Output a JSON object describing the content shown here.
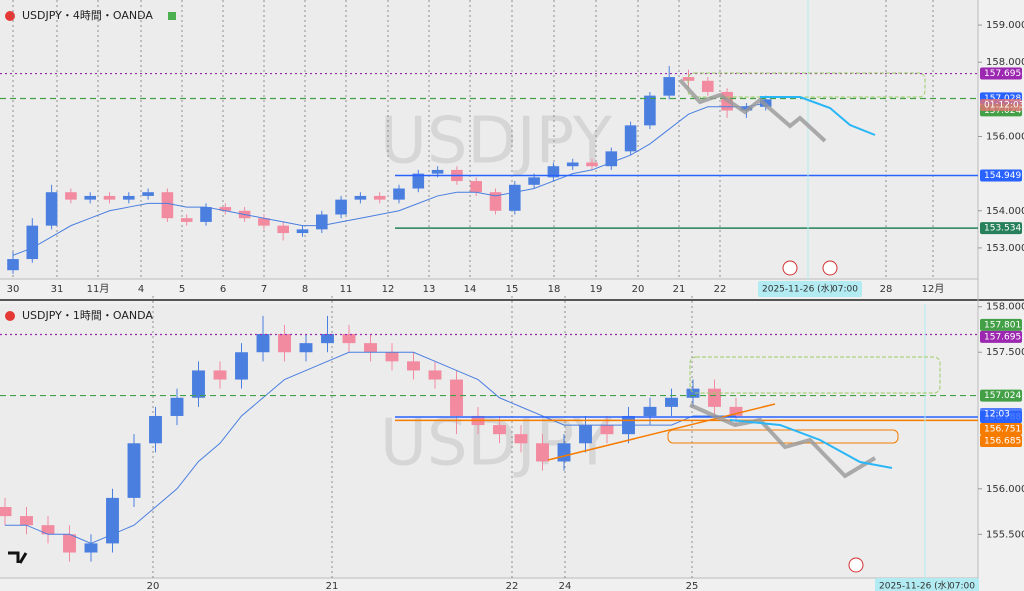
{
  "chart_data": [
    {
      "type": "candlestick",
      "title": "USDJPY・4時間・OANDA",
      "watermark": "USDJPY",
      "ylim": [
        152.19,
        159.46
      ],
      "yticks": [
        {
          "value": 159,
          "label": "159.000"
        },
        {
          "value": 158,
          "label": "158.000"
        },
        {
          "value": 156,
          "label": "156.000"
        },
        {
          "value": 154,
          "label": "154.000"
        },
        {
          "value": 153,
          "label": "153.000"
        }
      ],
      "xticks": [
        "30",
        "31",
        "11月",
        "4",
        "5",
        "6",
        "7",
        "8",
        "11",
        "12",
        "13",
        "14",
        "15",
        "18",
        "19",
        "20",
        "21",
        "22",
        "28",
        "12月"
      ],
      "up_color": "#4a7fe0",
      "down_color": "#f28aa0",
      "candles": [
        [
          152.4,
          152.9,
          152.3,
          152.7
        ],
        [
          152.7,
          153.8,
          152.6,
          153.6
        ],
        [
          153.6,
          154.7,
          153.5,
          154.5
        ],
        [
          154.5,
          154.6,
          154.2,
          154.3
        ],
        [
          154.3,
          154.5,
          154.2,
          154.4
        ],
        [
          154.4,
          154.5,
          154.2,
          154.3
        ],
        [
          154.3,
          154.5,
          154.2,
          154.4
        ],
        [
          154.4,
          154.6,
          154.3,
          154.5
        ],
        [
          154.5,
          154.6,
          153.7,
          153.8
        ],
        [
          153.8,
          153.9,
          153.6,
          153.7
        ],
        [
          153.7,
          154.2,
          153.6,
          154.1
        ],
        [
          154.1,
          154.2,
          153.9,
          154.0
        ],
        [
          154.0,
          154.1,
          153.7,
          153.8
        ],
        [
          153.8,
          153.9,
          153.5,
          153.6
        ],
        [
          153.6,
          153.7,
          153.2,
          153.4
        ],
        [
          153.4,
          153.6,
          153.3,
          153.5
        ],
        [
          153.5,
          154.0,
          153.4,
          153.9
        ],
        [
          153.9,
          154.4,
          153.8,
          154.3
        ],
        [
          154.3,
          154.5,
          154.2,
          154.4
        ],
        [
          154.4,
          154.5,
          154.2,
          154.3
        ],
        [
          154.3,
          154.7,
          154.2,
          154.6
        ],
        [
          154.6,
          155.1,
          154.5,
          155.0
        ],
        [
          155.0,
          155.2,
          154.9,
          155.1
        ],
        [
          155.1,
          155.2,
          154.7,
          154.8
        ],
        [
          154.8,
          154.9,
          154.4,
          154.5
        ],
        [
          154.5,
          154.6,
          153.9,
          154.0
        ],
        [
          154.0,
          154.8,
          153.9,
          154.7
        ],
        [
          154.7,
          155.0,
          154.6,
          154.9
        ],
        [
          154.9,
          155.3,
          154.8,
          155.2
        ],
        [
          155.2,
          155.4,
          155.1,
          155.3
        ],
        [
          155.3,
          155.4,
          155.1,
          155.2
        ],
        [
          155.2,
          155.7,
          155.1,
          155.6
        ],
        [
          155.6,
          156.4,
          155.5,
          156.3
        ],
        [
          156.3,
          157.2,
          156.2,
          157.1
        ],
        [
          157.1,
          157.9,
          157.0,
          157.6
        ],
        [
          157.6,
          157.8,
          157.3,
          157.5
        ],
        [
          157.5,
          157.6,
          157.1,
          157.2
        ],
        [
          157.2,
          157.3,
          156.5,
          156.7
        ],
        [
          156.7,
          156.9,
          156.5,
          156.8
        ],
        [
          156.8,
          157.1,
          156.7,
          157.0
        ]
      ],
      "ma": {
        "color": "#4a7fe0",
        "values": [
          152.8,
          153.0,
          153.3,
          153.6,
          153.8,
          154.0,
          154.1,
          154.2,
          154.2,
          154.1,
          154.1,
          154.0,
          153.9,
          153.8,
          153.7,
          153.6,
          153.6,
          153.7,
          153.8,
          153.9,
          154.0,
          154.2,
          154.4,
          154.5,
          154.5,
          154.4,
          154.5,
          154.6,
          154.8,
          155.0,
          155.1,
          155.3,
          155.5,
          155.8,
          156.2,
          156.6,
          156.8,
          156.8,
          156.8,
          156.9
        ]
      },
      "levels": [
        {
          "value": 157.695,
          "color": "#9c27b0",
          "style": "dotted"
        },
        {
          "value": 157.028,
          "color": "#2962ff",
          "style": "none"
        },
        {
          "value": 157.024,
          "color": "#43a047",
          "style": "dashed"
        },
        {
          "value": 154.949,
          "color": "#2962ff",
          "style": "solid"
        },
        {
          "value": 153.534,
          "color": "#26805a",
          "style": "solid"
        }
      ],
      "countdown": "01:12:03",
      "cursor_date": "2025-11-26 (水)",
      "cursor_time": "07:00"
    },
    {
      "type": "candlestick",
      "title": "USDJPY・1時間・OANDA",
      "watermark": "USDJPY",
      "ylim": [
        155.02,
        158.03
      ],
      "yticks": [
        {
          "value": 158,
          "label": "158.000"
        },
        {
          "value": 157.5,
          "label": "157.500"
        },
        {
          "value": 156,
          "label": "156.000"
        },
        {
          "value": 155.5,
          "label": "155.500"
        }
      ],
      "xticks": [
        "20",
        "21",
        "22",
        "24",
        "25"
      ],
      "up_color": "#4a7fe0",
      "down_color": "#f28aa0",
      "candles": [
        [
          155.8,
          155.9,
          155.6,
          155.7
        ],
        [
          155.7,
          155.8,
          155.5,
          155.6
        ],
        [
          155.6,
          155.7,
          155.4,
          155.5
        ],
        [
          155.5,
          155.6,
          155.2,
          155.3
        ],
        [
          155.3,
          155.5,
          155.2,
          155.4
        ],
        [
          155.4,
          156.0,
          155.3,
          155.9
        ],
        [
          155.9,
          156.6,
          155.8,
          156.5
        ],
        [
          156.5,
          156.9,
          156.4,
          156.8
        ],
        [
          156.8,
          157.1,
          156.7,
          157.0
        ],
        [
          157.0,
          157.4,
          156.9,
          157.3
        ],
        [
          157.3,
          157.4,
          157.1,
          157.2
        ],
        [
          157.2,
          157.6,
          157.1,
          157.5
        ],
        [
          157.5,
          157.9,
          157.4,
          157.7
        ],
        [
          157.7,
          157.8,
          157.4,
          157.5
        ],
        [
          157.5,
          157.7,
          157.4,
          157.6
        ],
        [
          157.6,
          157.9,
          157.5,
          157.7
        ],
        [
          157.7,
          157.8,
          157.5,
          157.6
        ],
        [
          157.6,
          157.7,
          157.4,
          157.5
        ],
        [
          157.5,
          157.6,
          157.3,
          157.4
        ],
        [
          157.4,
          157.5,
          157.2,
          157.3
        ],
        [
          157.3,
          157.4,
          157.1,
          157.2
        ],
        [
          157.2,
          157.3,
          156.6,
          156.8
        ],
        [
          156.8,
          156.9,
          156.6,
          156.7
        ],
        [
          156.7,
          156.8,
          156.5,
          156.6
        ],
        [
          156.6,
          156.7,
          156.4,
          156.5
        ],
        [
          156.5,
          156.6,
          156.2,
          156.3
        ],
        [
          156.3,
          156.6,
          156.2,
          156.5
        ],
        [
          156.5,
          156.8,
          156.4,
          156.7
        ],
        [
          156.7,
          156.8,
          156.5,
          156.6
        ],
        [
          156.6,
          156.9,
          156.5,
          156.8
        ],
        [
          156.8,
          157.0,
          156.7,
          156.9
        ],
        [
          156.9,
          157.1,
          156.8,
          157.0
        ],
        [
          157.0,
          157.2,
          156.9,
          157.1
        ],
        [
          157.1,
          157.2,
          156.8,
          156.9
        ],
        [
          156.9,
          157.0,
          156.7,
          156.8
        ]
      ],
      "ma": {
        "color": "#4a7fe0",
        "values": [
          155.6,
          155.6,
          155.5,
          155.5,
          155.4,
          155.5,
          155.6,
          155.8,
          156.0,
          156.3,
          156.5,
          156.8,
          157.0,
          157.2,
          157.3,
          157.4,
          157.5,
          157.5,
          157.5,
          157.5,
          157.4,
          157.3,
          157.2,
          157.0,
          156.9,
          156.8,
          156.7,
          156.7,
          156.7,
          156.7,
          156.7,
          156.7,
          156.8,
          156.8,
          156.8
        ]
      },
      "levels": [
        {
          "value": 157.801,
          "color": "#43a047",
          "style": "none"
        },
        {
          "value": 157.695,
          "color": "#9c27b0",
          "style": "dotted"
        },
        {
          "value": 157.024,
          "color": "#43a047",
          "style": "dashed"
        },
        {
          "value": 156.788,
          "color": "#2962ff",
          "style": "solid"
        },
        {
          "value": 156.751,
          "color": "#f57c00",
          "style": "solid"
        },
        {
          "value": 156.685,
          "color": "#f57c00",
          "style": "none"
        }
      ],
      "countdown": "12:03",
      "cursor_date": "2025-11-26 (水)",
      "cursor_time": "07:00"
    }
  ]
}
